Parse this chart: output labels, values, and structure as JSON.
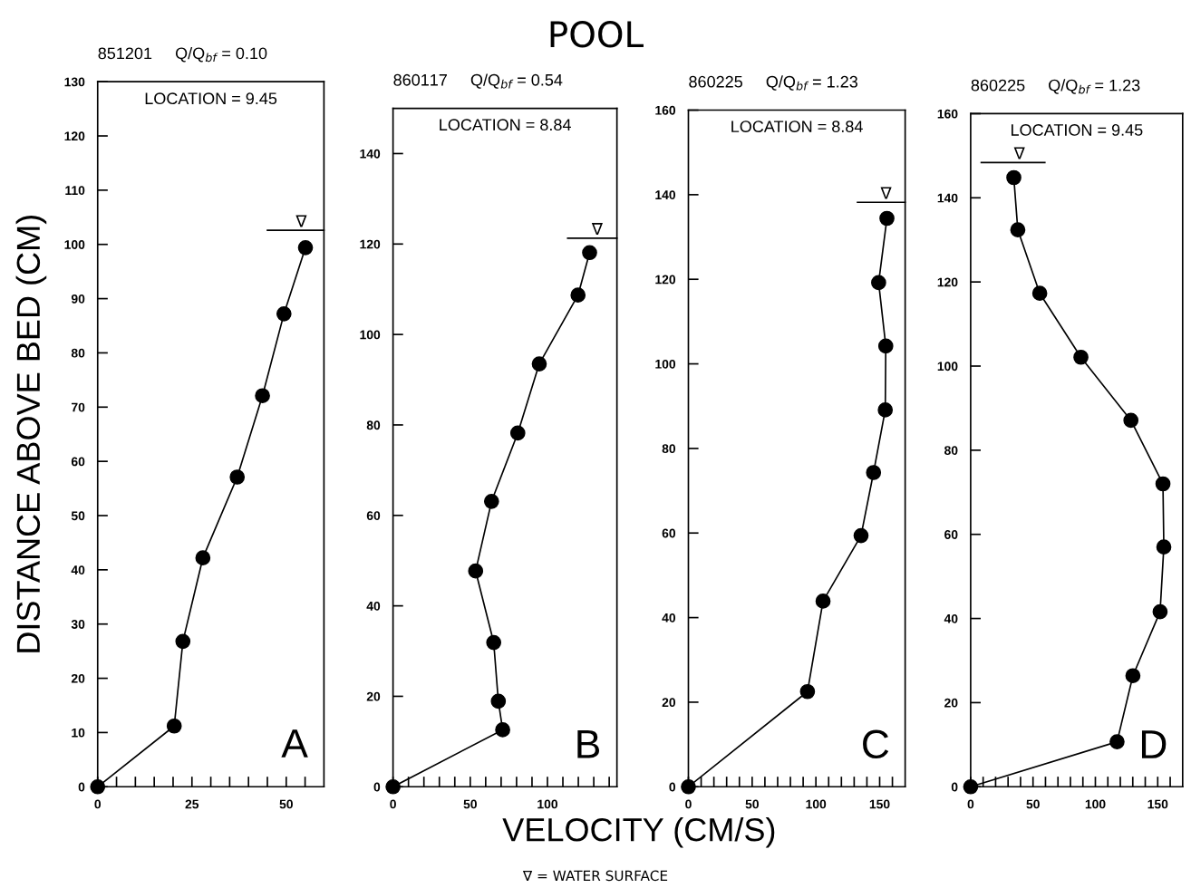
{
  "chart_data": [
    {
      "type": "line",
      "title": "851201     Q/Q$_{bf}$ = 0.10",
      "ylabel": "DISTANCE ABOVE BED (CM)",
      "marker": "circle",
      "line_style": "solid",
      "grid": false,
      "legend": false,
      "series": [
        {
          "color": "#000000",
          "x": [
            0,
            20.3,
            22.6,
            27.9,
            37.0,
            43.7,
            49.4,
            55.1
          ],
          "values": [
            0,
            11.2,
            26.8,
            42.2,
            57.1,
            72.1,
            87.2,
            99.4
          ]
        }
      ],
      "xlim": [
        0,
        60
      ],
      "ylim": [
        0,
        130
      ],
      "xticks": [
        0,
        {
          "value": 5,
          "label": null
        },
        {
          "value": 10,
          "label": null
        },
        {
          "value": 15,
          "label": null
        },
        {
          "value": 20,
          "label": null
        },
        25,
        {
          "value": 30,
          "label": null
        },
        {
          "value": 35,
          "label": null
        },
        {
          "value": 40,
          "label": null
        },
        {
          "value": 45,
          "label": null
        },
        50,
        {
          "value": 55,
          "label": null
        }
      ],
      "yticks": [
        0,
        10,
        20,
        30,
        40,
        50,
        60,
        70,
        80,
        90,
        100,
        110,
        120,
        130
      ],
      "ref_lines": [
        {
          "axis": "y",
          "value": 102.6,
          "label": "∇"
        }
      ],
      "annotations": [
        "LOCATION = 9.45",
        "A",
        "POOL"
      ]
    },
    {
      "type": "line",
      "title": "860117     Q/Q$_{bf}$ = 0.54",
      "xlabel": "VELOCITY (CM/S)",
      "marker": "circle",
      "line_style": "solid",
      "grid": false,
      "legend": false,
      "series": [
        {
          "color": "#000000",
          "x": [
            0,
            71.0,
            68.2,
            65.2,
            53.5,
            63.8,
            80.8,
            94.7,
            119.8,
            127.3
          ],
          "values": [
            0,
            12.6,
            18.9,
            31.9,
            47.7,
            63.1,
            78.2,
            93.5,
            108.7,
            118.1
          ]
        }
      ],
      "xlim": [
        0,
        145
      ],
      "ylim": [
        0,
        150
      ],
      "xticks": [
        0,
        {
          "value": 10,
          "label": null
        },
        {
          "value": 20,
          "label": null
        },
        {
          "value": 30,
          "label": null
        },
        {
          "value": 40,
          "label": null
        },
        50,
        {
          "value": 60,
          "label": null
        },
        {
          "value": 70,
          "label": null
        },
        {
          "value": 80,
          "label": null
        },
        {
          "value": 90,
          "label": null
        },
        100,
        {
          "value": 110,
          "label": null
        },
        {
          "value": 120,
          "label": null
        },
        {
          "value": 130,
          "label": null
        },
        {
          "value": 140,
          "label": null
        }
      ],
      "yticks": [
        0,
        20,
        40,
        60,
        80,
        100,
        120,
        140
      ],
      "ref_lines": [
        {
          "axis": "y",
          "value": 121.3,
          "label": "∇"
        }
      ],
      "annotations": [
        "LOCATION = 8.84",
        "B",
        "∇ = WATER SURFACE"
      ]
    },
    {
      "type": "line",
      "title": "860225     Q/Q$_{bf}$ = 1.23",
      "marker": "circle",
      "line_style": "solid",
      "grid": false,
      "legend": false,
      "series": [
        {
          "color": "#000000",
          "x": [
            0,
            93.4,
            105.6,
            135.4,
            145.2,
            154.4,
            154.8,
            149.2,
            155.7
          ],
          "values": [
            0,
            22.5,
            43.9,
            59.4,
            74.3,
            89.1,
            104.2,
            119.2,
            134.4
          ]
        }
      ],
      "xlim": [
        0,
        170
      ],
      "ylim": [
        0,
        160
      ],
      "xticks": [
        0,
        {
          "value": 10,
          "label": null
        },
        {
          "value": 20,
          "label": null
        },
        {
          "value": 30,
          "label": null
        },
        {
          "value": 40,
          "label": null
        },
        50,
        {
          "value": 60,
          "label": null
        },
        {
          "value": 70,
          "label": null
        },
        {
          "value": 80,
          "label": null
        },
        {
          "value": 90,
          "label": null
        },
        100,
        {
          "value": 110,
          "label": null
        },
        {
          "value": 120,
          "label": null
        },
        {
          "value": 130,
          "label": null
        },
        {
          "value": 140,
          "label": null
        },
        150,
        {
          "value": 160,
          "label": null
        }
      ],
      "yticks": [
        0,
        20,
        40,
        60,
        80,
        100,
        120,
        140,
        160
      ],
      "ref_lines": [
        {
          "axis": "y",
          "value": 138.2,
          "label": "∇"
        }
      ],
      "annotations": [
        "LOCATION = 8.84",
        "C"
      ]
    },
    {
      "type": "line",
      "title": "860225     Q/Q$_{bf}$ = 1.23",
      "marker": "circle",
      "line_style": "solid",
      "grid": false,
      "legend": false,
      "series": [
        {
          "color": "#000000",
          "x": [
            0,
            117.4,
            130.1,
            151.9,
            154.9,
            154.2,
            128.5,
            88.4,
            55.4,
            37.8,
            34.6
          ],
          "values": [
            0,
            10.7,
            26.4,
            41.6,
            57.0,
            72.0,
            87.1,
            102.1,
            117.3,
            132.4,
            144.8
          ]
        }
      ],
      "xlim": [
        0,
        170
      ],
      "ylim": [
        0,
        160
      ],
      "xticks": [
        0,
        {
          "value": 10,
          "label": null
        },
        {
          "value": 20,
          "label": null
        },
        {
          "value": 30,
          "label": null
        },
        {
          "value": 40,
          "label": null
        },
        50,
        {
          "value": 60,
          "label": null
        },
        {
          "value": 70,
          "label": null
        },
        {
          "value": 80,
          "label": null
        },
        {
          "value": 90,
          "label": null
        },
        100,
        {
          "value": 110,
          "label": null
        },
        {
          "value": 120,
          "label": null
        },
        {
          "value": 130,
          "label": null
        },
        {
          "value": 140,
          "label": null
        },
        150,
        {
          "value": 160,
          "label": null
        }
      ],
      "yticks": [
        0,
        20,
        40,
        60,
        80,
        100,
        120,
        140,
        160
      ],
      "ref_lines": [
        {
          "axis": "y",
          "value": 148.4,
          "label": "∇"
        }
      ],
      "annotations": [
        "LOCATION = 9.45",
        "D"
      ]
    }
  ]
}
